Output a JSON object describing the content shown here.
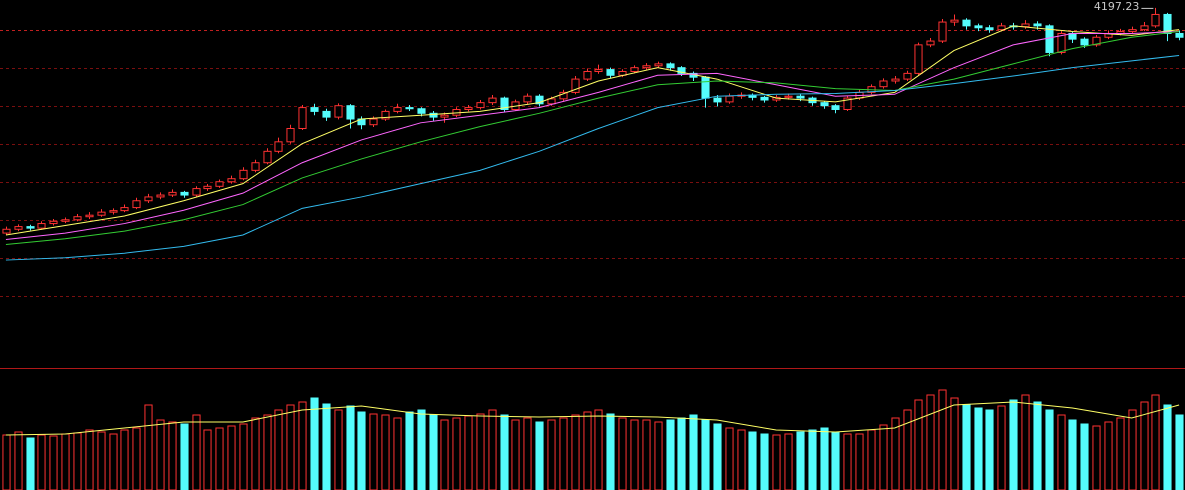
{
  "chart_data": {
    "type": "candlestick",
    "ylim": [
      3258,
      4218
    ],
    "yticks": [
      4140,
      4040,
      3940,
      3840,
      3740,
      3640,
      3540,
      3440
    ],
    "grid": true,
    "up_color": "#ff3232",
    "down_color": "#54fcfc",
    "ohlc": [
      [
        3605,
        3622,
        3600,
        3615
      ],
      [
        3615,
        3628,
        3610,
        3622
      ],
      [
        3622,
        3627,
        3612,
        3618
      ],
      [
        3618,
        3636,
        3614,
        3630
      ],
      [
        3630,
        3642,
        3625,
        3636
      ],
      [
        3636,
        3646,
        3631,
        3640
      ],
      [
        3640,
        3655,
        3636,
        3648
      ],
      [
        3648,
        3660,
        3642,
        3652
      ],
      [
        3652,
        3668,
        3648,
        3660
      ],
      [
        3660,
        3670,
        3654,
        3664
      ],
      [
        3664,
        3680,
        3660,
        3672
      ],
      [
        3672,
        3698,
        3668,
        3690
      ],
      [
        3690,
        3708,
        3684,
        3700
      ],
      [
        3700,
        3712,
        3694,
        3705
      ],
      [
        3705,
        3720,
        3700,
        3712
      ],
      [
        3712,
        3716,
        3698,
        3705
      ],
      [
        3705,
        3728,
        3700,
        3722
      ],
      [
        3722,
        3734,
        3716,
        3728
      ],
      [
        3728,
        3746,
        3724,
        3740
      ],
      [
        3740,
        3756,
        3735,
        3748
      ],
      [
        3748,
        3778,
        3744,
        3770
      ],
      [
        3770,
        3798,
        3765,
        3790
      ],
      [
        3790,
        3828,
        3786,
        3820
      ],
      [
        3820,
        3856,
        3815,
        3845
      ],
      [
        3845,
        3890,
        3840,
        3880
      ],
      [
        3880,
        3942,
        3876,
        3935
      ],
      [
        3935,
        3945,
        3915,
        3925
      ],
      [
        3925,
        3932,
        3900,
        3910
      ],
      [
        3910,
        3946,
        3904,
        3940
      ],
      [
        3940,
        3944,
        3880,
        3905
      ],
      [
        3905,
        3912,
        3878,
        3890
      ],
      [
        3890,
        3912,
        3884,
        3905
      ],
      [
        3905,
        3930,
        3900,
        3925
      ],
      [
        3925,
        3945,
        3920,
        3935
      ],
      [
        3935,
        3942,
        3926,
        3932
      ],
      [
        3932,
        3936,
        3912,
        3920
      ],
      [
        3920,
        3926,
        3900,
        3910
      ],
      [
        3910,
        3922,
        3895,
        3915
      ],
      [
        3915,
        3936,
        3910,
        3930
      ],
      [
        3930,
        3942,
        3925,
        3935
      ],
      [
        3935,
        3955,
        3930,
        3948
      ],
      [
        3948,
        3968,
        3942,
        3960
      ],
      [
        3960,
        3964,
        3922,
        3930
      ],
      [
        3930,
        3956,
        3926,
        3950
      ],
      [
        3950,
        3972,
        3944,
        3965
      ],
      [
        3965,
        3970,
        3938,
        3945
      ],
      [
        3945,
        3964,
        3940,
        3958
      ],
      [
        3958,
        3982,
        3952,
        3975
      ],
      [
        3975,
        4018,
        3970,
        4010
      ],
      [
        4010,
        4038,
        4005,
        4030
      ],
      [
        4030,
        4048,
        4024,
        4035
      ],
      [
        4035,
        4040,
        4012,
        4020
      ],
      [
        4020,
        4036,
        4015,
        4030
      ],
      [
        4030,
        4046,
        4025,
        4040
      ],
      [
        4040,
        4052,
        4034,
        4045
      ],
      [
        4045,
        4056,
        4040,
        4050
      ],
      [
        4050,
        4054,
        4032,
        4040
      ],
      [
        4040,
        4044,
        4018,
        4025
      ],
      [
        4025,
        4030,
        4005,
        4015
      ],
      [
        4015,
        4018,
        3935,
        3960
      ],
      [
        3960,
        3968,
        3938,
        3950
      ],
      [
        3950,
        3972,
        3945,
        3965
      ],
      [
        3965,
        3975,
        3958,
        3968
      ],
      [
        3968,
        3972,
        3954,
        3962
      ],
      [
        3962,
        3966,
        3948,
        3955
      ],
      [
        3955,
        3968,
        3950,
        3962
      ],
      [
        3962,
        3972,
        3956,
        3965
      ],
      [
        3965,
        3970,
        3952,
        3960
      ],
      [
        3960,
        3964,
        3940,
        3948
      ],
      [
        3948,
        3952,
        3932,
        3940
      ],
      [
        3940,
        3944,
        3920,
        3930
      ],
      [
        3930,
        3966,
        3926,
        3960
      ],
      [
        3960,
        3982,
        3955,
        3975
      ],
      [
        3975,
        3996,
        3970,
        3990
      ],
      [
        3990,
        4012,
        3985,
        4005
      ],
      [
        4005,
        4018,
        3998,
        4010
      ],
      [
        4010,
        4032,
        4005,
        4025
      ],
      [
        4025,
        4106,
        4020,
        4100
      ],
      [
        4100,
        4118,
        4094,
        4110
      ],
      [
        4110,
        4168,
        4105,
        4160
      ],
      [
        4160,
        4180,
        4150,
        4165
      ],
      [
        4165,
        4170,
        4140,
        4150
      ],
      [
        4150,
        4156,
        4136,
        4145
      ],
      [
        4145,
        4152,
        4132,
        4140
      ],
      [
        4140,
        4158,
        4135,
        4150
      ],
      [
        4150,
        4158,
        4140,
        4148
      ],
      [
        4148,
        4165,
        4142,
        4155
      ],
      [
        4155,
        4162,
        4140,
        4150
      ],
      [
        4150,
        4154,
        4070,
        4080
      ],
      [
        4080,
        4136,
        4075,
        4130
      ],
      [
        4130,
        4134,
        4105,
        4115
      ],
      [
        4115,
        4120,
        4092,
        4100
      ],
      [
        4100,
        4126,
        4095,
        4120
      ],
      [
        4120,
        4138,
        4115,
        4130
      ],
      [
        4130,
        4142,
        4125,
        4135
      ],
      [
        4135,
        4148,
        4130,
        4140
      ],
      [
        4140,
        4160,
        4136,
        4150
      ],
      [
        4150,
        4197.23,
        4145,
        4180
      ],
      [
        4180,
        4184,
        4110,
        4130
      ],
      [
        4130,
        4138,
        4112,
        4120
      ]
    ],
    "ma_x": [
      0,
      5,
      10,
      15,
      20,
      25,
      30,
      35,
      40,
      45,
      50,
      55,
      60,
      65,
      70,
      75,
      80,
      85,
      90,
      95,
      99
    ],
    "ma_series": [
      {
        "color": "#ffff66",
        "values": [
          3600,
          3625,
          3650,
          3690,
          3735,
          3840,
          3905,
          3915,
          3925,
          3948,
          4005,
          4040,
          4010,
          3960,
          3950,
          3975,
          4085,
          4150,
          4135,
          4125,
          4140
        ]
      },
      {
        "color": "#ff66ff",
        "values": [
          3588,
          3605,
          3630,
          3665,
          3710,
          3790,
          3850,
          3895,
          3915,
          3935,
          3975,
          4020,
          4025,
          3995,
          3965,
          3970,
          4040,
          4100,
          4130,
          4130,
          4135
        ]
      },
      {
        "color": "#33cc33",
        "values": [
          3575,
          3590,
          3610,
          3640,
          3680,
          3750,
          3800,
          3845,
          3885,
          3920,
          3960,
          3995,
          4005,
          4000,
          3985,
          3980,
          4010,
          4050,
          4090,
          4120,
          4135
        ]
      },
      {
        "color": "#33bbee",
        "values": [
          3534,
          3540,
          3552,
          3570,
          3600,
          3670,
          3700,
          3735,
          3770,
          3820,
          3880,
          3935,
          3965,
          3970,
          3972,
          3980,
          3998,
          4018,
          4040,
          4058,
          4072
        ]
      }
    ],
    "vlim": [
      0,
      120
    ],
    "volume": [
      55,
      58,
      52,
      55,
      54,
      56,
      57,
      60,
      58,
      56,
      60,
      62,
      85,
      70,
      68,
      66,
      75,
      60,
      62,
      64,
      66,
      72,
      75,
      80,
      85,
      88,
      92,
      86,
      80,
      84,
      78,
      76,
      75,
      72,
      78,
      80,
      75,
      70,
      72,
      74,
      76,
      80,
      75,
      70,
      72,
      68,
      70,
      72,
      75,
      78,
      80,
      76,
      72,
      70,
      70,
      68,
      70,
      72,
      75,
      70,
      66,
      62,
      60,
      58,
      56,
      55,
      56,
      58,
      60,
      62,
      58,
      56,
      56,
      60,
      65,
      72,
      80,
      90,
      95,
      100,
      92,
      85,
      82,
      80,
      84,
      90,
      95,
      88,
      80,
      75,
      70,
      66,
      64,
      68,
      72,
      80,
      88,
      95,
      85,
      75
    ],
    "volume_ma": {
      "color": "#ffff66",
      "values": [
        55,
        56,
        62,
        68,
        68,
        80,
        84,
        76,
        74,
        73,
        74,
        73,
        70,
        60,
        58,
        62,
        85,
        88,
        82,
        72,
        85
      ]
    }
  }
}
